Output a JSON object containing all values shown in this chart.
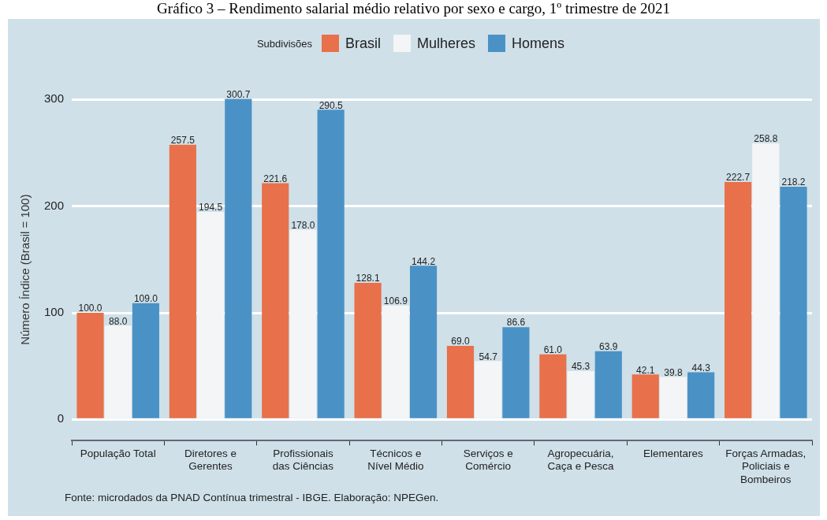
{
  "chart_data": {
    "type": "bar",
    "title": "Gráfico 3 – Rendimento salarial médio relativo por sexo e cargo, 1º trimestre de 2021",
    "ylabel": "Número Índice (Brasil = 100)",
    "legend_title": "Subdivisões",
    "legend": "top",
    "categories": [
      "População Total",
      "Diretores e Gerentes",
      "Profissionais das Ciências",
      "Técnicos e Nível Médio",
      "Serviços e Comércio",
      "Agropecuária, Caça e Pesca",
      "Elementares",
      "Forças Armadas, Policiais e Bombeiros"
    ],
    "series": [
      {
        "name": "Brasil",
        "color": "#e8704a",
        "values": [
          100.0,
          257.5,
          221.6,
          128.1,
          69.0,
          61.0,
          42.1,
          222.7
        ],
        "value_labels": [
          "100.0",
          "257.5",
          "221.6",
          "128.1",
          "69.0",
          "61.0",
          "42.1",
          "222.7"
        ]
      },
      {
        "name": "Mulheres",
        "color": "#f4f5f6",
        "values": [
          88.0,
          194.5,
          178.0,
          106.9,
          54.7,
          45.3,
          39.8,
          258.8
        ],
        "value_labels": [
          "88.0",
          "194.5",
          "178.0",
          "106.9",
          "54.7",
          "45.3",
          "39.8",
          "258.8"
        ]
      },
      {
        "name": "Homens",
        "color": "#4a92c6",
        "values": [
          109.0,
          300.7,
          290.5,
          144.2,
          86.6,
          63.9,
          44.3,
          218.2
        ],
        "value_labels": [
          "109.0",
          "300.7",
          "290.5",
          "144.2",
          "86.6",
          "63.9",
          "44.3",
          "218.2"
        ]
      }
    ],
    "ylim": [
      -20,
      301
    ],
    "yticks": [
      0,
      100,
      200,
      300
    ],
    "grid": "y",
    "annotations": [
      "Fonte: microdados da PNAD Contínua trimestral - IBGE. Elaboração: NPEGen."
    ]
  }
}
